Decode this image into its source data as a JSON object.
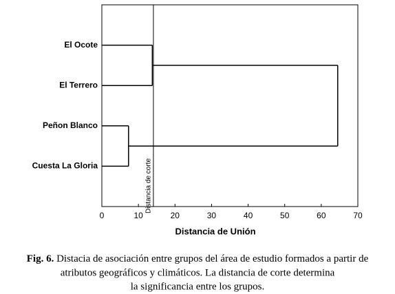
{
  "chart_data": {
    "type": "dendrogram",
    "xlabel": "Distancia de Unión",
    "xlim": [
      0,
      70
    ],
    "xticks": [
      0,
      10,
      20,
      30,
      40,
      50,
      60,
      70
    ],
    "color": "#000000",
    "tree": {
      "distance": 64.5,
      "children": [
        {
          "distance": 13.8,
          "children": [
            "El Ocote",
            "El Terrero"
          ]
        },
        {
          "distance": 7.3,
          "children": [
            "Peñon Blanco",
            "Cuesta La Gloria"
          ]
        }
      ]
    },
    "cut_distance": 14.1,
    "cut_label": "Distancia de corte"
  },
  "caption": {
    "label": "Fig. 6.",
    "lines": [
      "Distacia de asociación entre  grupos del área de estudio formados a partir de",
      "atributos geográficos y climáticos. La distancia de corte determina",
      "la significancia entre los grupos."
    ]
  }
}
